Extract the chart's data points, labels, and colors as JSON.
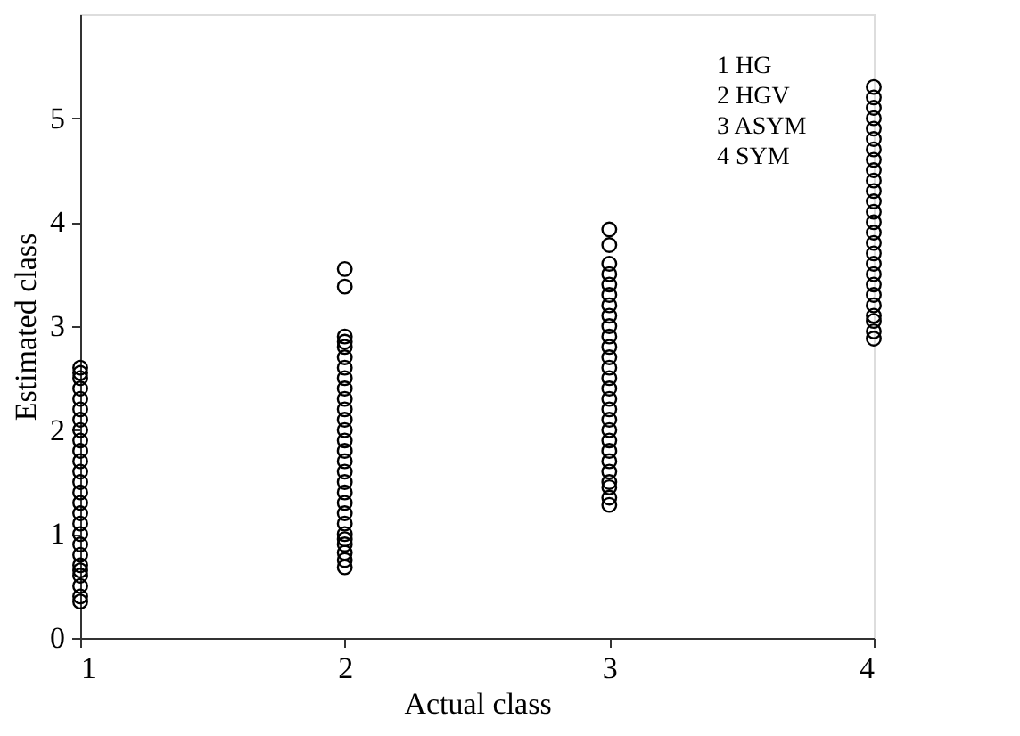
{
  "chart_data": {
    "type": "scatter",
    "xlabel": "Actual class",
    "ylabel": "Estimated class",
    "xlim": [
      1,
      4
    ],
    "xticks": [
      1,
      2,
      3,
      4
    ],
    "ylim": [
      0,
      6
    ],
    "yticks": [
      0,
      1,
      2,
      3,
      4,
      5
    ],
    "grid": false,
    "legend": false,
    "marker": "circle",
    "annotations": [
      "1 HG",
      "2 HGV",
      "3 ASYM",
      "4 SYM"
    ],
    "series": [
      {
        "color": "#000000",
        "x": [
          1,
          1,
          1,
          1,
          1,
          1,
          1,
          1,
          1,
          1,
          1,
          1,
          1,
          1,
          1,
          1,
          1,
          1,
          1,
          1,
          1,
          1,
          1,
          1,
          1,
          1,
          2,
          2,
          2,
          2,
          2,
          2,
          2,
          2,
          2,
          2,
          2,
          2,
          2,
          2,
          2,
          2,
          2,
          2,
          2,
          2,
          2,
          2,
          2,
          2,
          2,
          2,
          2,
          2,
          3,
          3,
          3,
          3,
          3,
          3,
          3,
          3,
          3,
          3,
          3,
          3,
          3,
          3,
          3,
          3,
          3,
          3,
          3,
          3,
          3,
          3,
          3,
          3,
          3,
          3,
          3,
          4,
          4,
          4,
          4,
          4,
          4,
          4,
          4,
          4,
          4,
          4,
          4,
          4,
          4,
          4,
          4,
          4,
          4,
          4,
          4,
          4,
          4,
          4,
          4,
          4,
          4
        ],
        "values": [
          0.35,
          0.4,
          0.5,
          0.6,
          0.65,
          0.7,
          0.8,
          0.9,
          1.0,
          1.1,
          1.2,
          1.3,
          1.4,
          1.5,
          1.6,
          1.7,
          1.8,
          1.9,
          2.0,
          2.1,
          2.2,
          2.3,
          2.4,
          2.5,
          2.55,
          2.6,
          0.68,
          0.75,
          0.82,
          0.9,
          0.95,
          1.0,
          1.1,
          1.2,
          1.3,
          1.4,
          1.5,
          1.6,
          1.7,
          1.8,
          1.9,
          2.0,
          2.1,
          2.2,
          2.3,
          2.4,
          2.5,
          2.6,
          2.7,
          2.8,
          2.85,
          2.9,
          3.38,
          3.55,
          1.28,
          1.35,
          1.45,
          1.5,
          1.6,
          1.7,
          1.8,
          1.9,
          2.0,
          2.1,
          2.2,
          2.3,
          2.4,
          2.5,
          2.6,
          2.7,
          2.8,
          2.9,
          3.0,
          3.1,
          3.2,
          3.3,
          3.4,
          3.5,
          3.6,
          3.78,
          3.93,
          2.88,
          2.95,
          3.05,
          3.1,
          3.2,
          3.3,
          3.4,
          3.5,
          3.6,
          3.7,
          3.8,
          3.9,
          4.0,
          4.1,
          4.2,
          4.3,
          4.4,
          4.5,
          4.6,
          4.7,
          4.8,
          4.9,
          5.0,
          5.1,
          5.2,
          5.3
        ]
      }
    ]
  }
}
